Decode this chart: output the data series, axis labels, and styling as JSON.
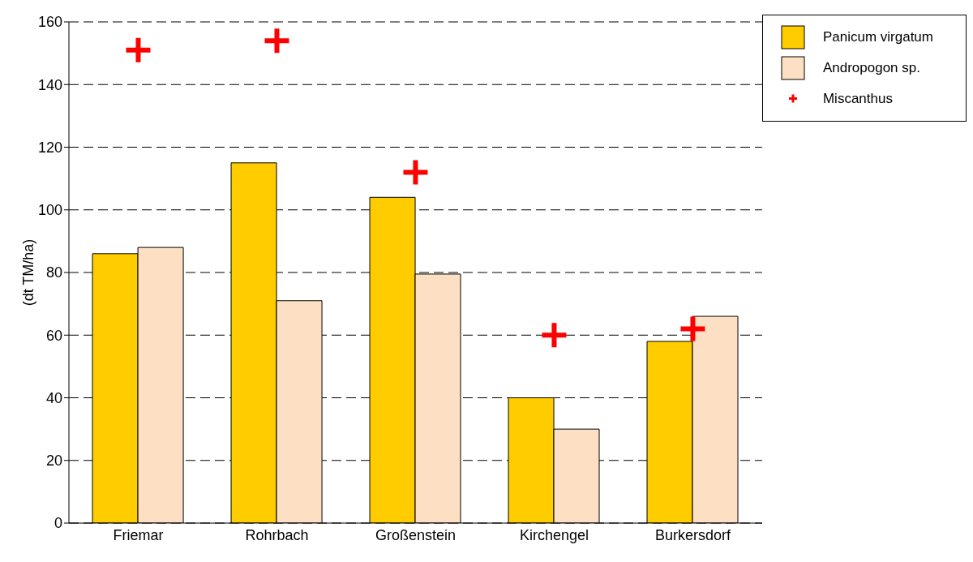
{
  "chart_data": {
    "type": "bar",
    "ylabel": "(dt TM/ha)",
    "categories": [
      "Friemar",
      "Rohrbach",
      "Großenstein",
      "Kirchengel",
      "Burkersdorf"
    ],
    "series": [
      {
        "name": "Panicum virgatum",
        "color": "#ffcc00",
        "values": [
          86,
          115,
          104,
          40,
          58
        ]
      },
      {
        "name": "Andropogon sp.",
        "color": "#fde0c4",
        "values": [
          88,
          71,
          79.5,
          30,
          66
        ]
      },
      {
        "name": "Miscanthus",
        "type": "scatter",
        "marker": "cross",
        "color": "#ff0000",
        "x": [
          "Friemar",
          "Rohrbach",
          "Großenstein",
          "Kirchengel",
          "Burkersdorf"
        ],
        "values": [
          151,
          154,
          112,
          60,
          62
        ]
      }
    ],
    "ylim": [
      0,
      160
    ],
    "yticks": [
      0,
      20,
      40,
      60,
      80,
      100,
      120,
      140,
      160
    ],
    "grid": "y",
    "legend": "top right"
  }
}
